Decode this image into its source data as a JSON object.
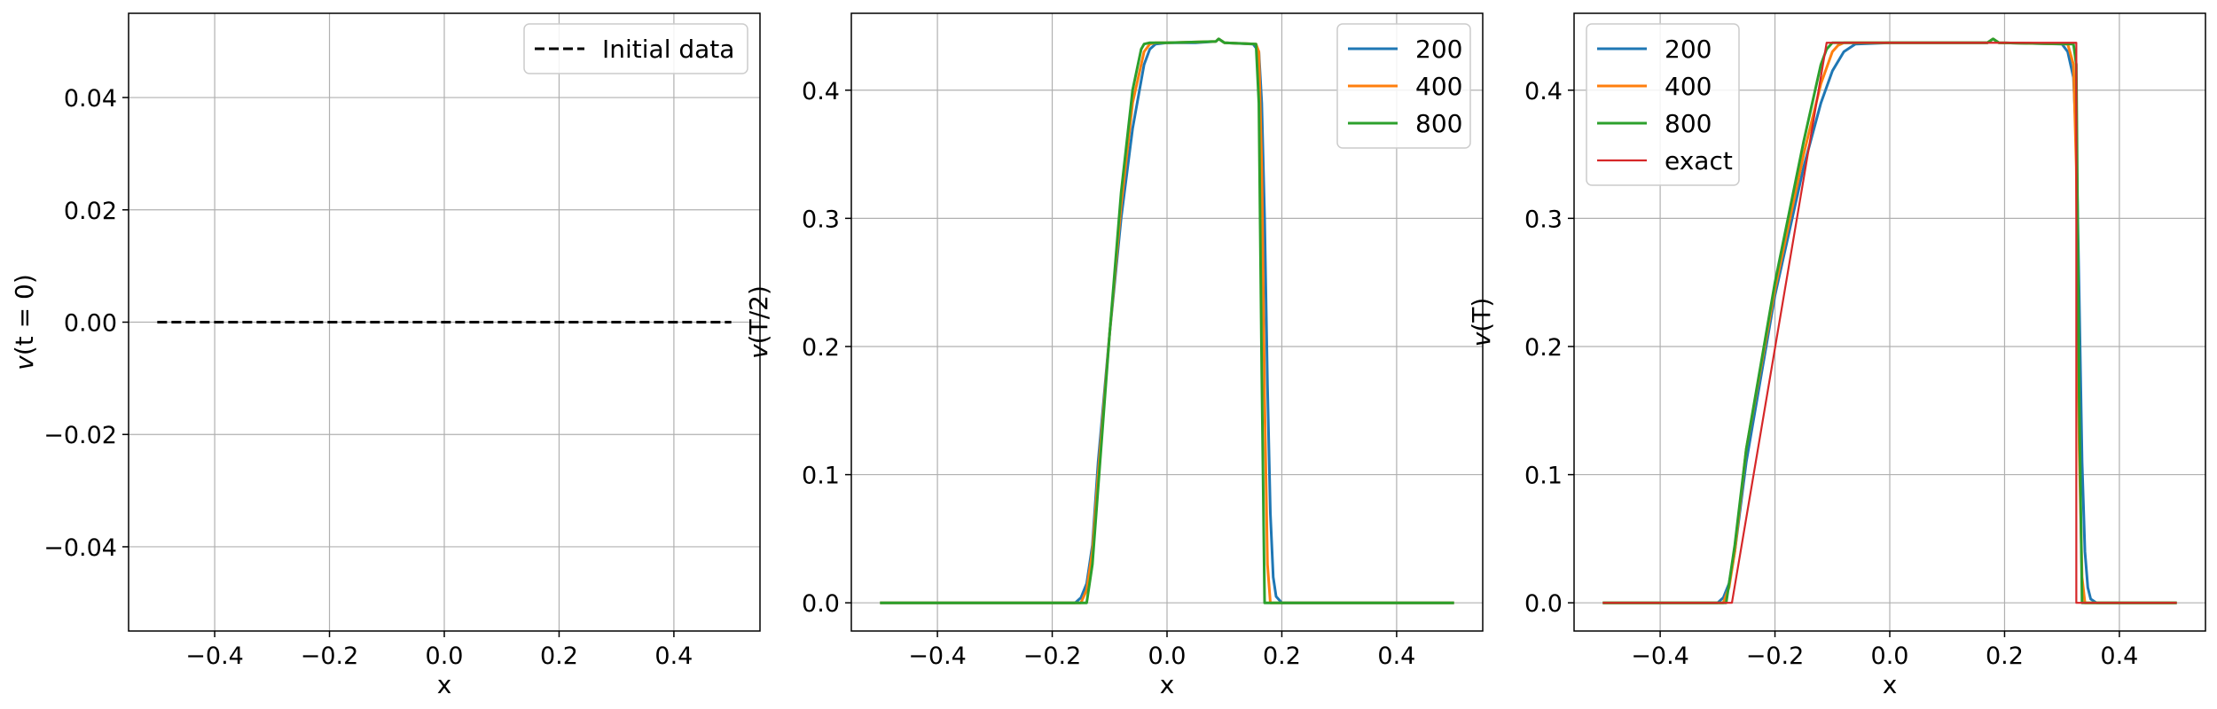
{
  "chart_data": [
    {
      "type": "line",
      "title": "",
      "xlabel": "x",
      "ylabel": "v(t = 0)",
      "xlim": [
        -0.55,
        0.55
      ],
      "ylim": [
        -0.055,
        0.055
      ],
      "xticks": [
        -0.4,
        -0.2,
        0.0,
        0.2,
        0.4
      ],
      "xtick_labels": [
        "−0.4",
        "−0.2",
        "0.0",
        "0.2",
        "0.4"
      ],
      "yticks": [
        -0.04,
        -0.02,
        0.0,
        0.02,
        0.04
      ],
      "ytick_labels": [
        "−0.04",
        "−0.02",
        "0.00",
        "0.02",
        "0.04"
      ],
      "grid": true,
      "legend_position": "upper right",
      "series": [
        {
          "name": "Initial data",
          "color": "#000000",
          "dash": "dashed",
          "x": [
            -0.5,
            0.5
          ],
          "y": [
            0.0,
            0.0
          ]
        }
      ]
    },
    {
      "type": "line",
      "title": "",
      "xlabel": "x",
      "ylabel": "v(T/2)",
      "xlim": [
        -0.55,
        0.55
      ],
      "ylim": [
        -0.022,
        0.46
      ],
      "xticks": [
        -0.4,
        -0.2,
        0.0,
        0.2,
        0.4
      ],
      "xtick_labels": [
        "−0.4",
        "−0.2",
        "0.0",
        "0.2",
        "0.4"
      ],
      "yticks": [
        0.0,
        0.1,
        0.2,
        0.3,
        0.4
      ],
      "ytick_labels": [
        "0.0",
        "0.1",
        "0.2",
        "0.3",
        "0.4"
      ],
      "grid": true,
      "legend_position": "upper right",
      "series": [
        {
          "name": "200",
          "color": "#1f77b4",
          "x": [
            -0.5,
            -0.16,
            -0.15,
            -0.14,
            -0.13,
            -0.12,
            -0.1,
            -0.08,
            -0.06,
            -0.04,
            -0.03,
            -0.02,
            0.0,
            0.05,
            0.085,
            0.09,
            0.1,
            0.15,
            0.16,
            0.165,
            0.17,
            0.175,
            0.18,
            0.185,
            0.19,
            0.2,
            0.5
          ],
          "y": [
            0.0,
            0.0,
            0.004,
            0.015,
            0.045,
            0.11,
            0.21,
            0.3,
            0.37,
            0.42,
            0.432,
            0.436,
            0.437,
            0.437,
            0.438,
            0.44,
            0.437,
            0.436,
            0.43,
            0.39,
            0.3,
            0.17,
            0.07,
            0.02,
            0.005,
            0.0,
            0.0
          ]
        },
        {
          "name": "400",
          "color": "#ff7f0e",
          "x": [
            -0.5,
            -0.15,
            -0.14,
            -0.13,
            -0.12,
            -0.1,
            -0.08,
            -0.06,
            -0.04,
            -0.03,
            -0.02,
            0.0,
            0.085,
            0.09,
            0.1,
            0.155,
            0.16,
            0.165,
            0.17,
            0.175,
            0.18,
            0.5
          ],
          "y": [
            0.0,
            0.0,
            0.01,
            0.04,
            0.1,
            0.21,
            0.31,
            0.39,
            0.43,
            0.436,
            0.437,
            0.437,
            0.438,
            0.44,
            0.437,
            0.436,
            0.43,
            0.34,
            0.16,
            0.03,
            0.0,
            0.0
          ]
        },
        {
          "name": "800",
          "color": "#2ca02c",
          "x": [
            -0.5,
            -0.14,
            -0.13,
            -0.12,
            -0.1,
            -0.08,
            -0.06,
            -0.045,
            -0.04,
            -0.03,
            0.0,
            0.085,
            0.09,
            0.1,
            0.155,
            0.16,
            0.165,
            0.17,
            0.5
          ],
          "y": [
            0.0,
            0.0,
            0.03,
            0.09,
            0.21,
            0.32,
            0.4,
            0.432,
            0.436,
            0.437,
            0.437,
            0.438,
            0.44,
            0.437,
            0.436,
            0.39,
            0.18,
            0.0,
            0.0
          ]
        }
      ]
    },
    {
      "type": "line",
      "title": "",
      "xlabel": "x",
      "ylabel": "v(T)",
      "xlim": [
        -0.55,
        0.55
      ],
      "ylim": [
        -0.022,
        0.46
      ],
      "xticks": [
        -0.4,
        -0.2,
        0.0,
        0.2,
        0.4
      ],
      "xtick_labels": [
        "−0.4",
        "−0.2",
        "0.0",
        "0.2",
        "0.4"
      ],
      "yticks": [
        0.0,
        0.1,
        0.2,
        0.3,
        0.4
      ],
      "ytick_labels": [
        "0.0",
        "0.1",
        "0.2",
        "0.3",
        "0.4"
      ],
      "grid": true,
      "legend_position": "upper left",
      "series": [
        {
          "name": "200",
          "color": "#1f77b4",
          "x": [
            -0.5,
            -0.3,
            -0.29,
            -0.28,
            -0.27,
            -0.25,
            -0.2,
            -0.15,
            -0.12,
            -0.1,
            -0.08,
            -0.06,
            0.0,
            0.17,
            0.18,
            0.19,
            0.3,
            0.31,
            0.32,
            0.325,
            0.33,
            0.335,
            0.34,
            0.345,
            0.35,
            0.36,
            0.5
          ],
          "y": [
            0.0,
            0.0,
            0.004,
            0.015,
            0.04,
            0.11,
            0.24,
            0.34,
            0.39,
            0.415,
            0.43,
            0.436,
            0.437,
            0.437,
            0.44,
            0.437,
            0.436,
            0.43,
            0.41,
            0.36,
            0.24,
            0.11,
            0.04,
            0.012,
            0.003,
            0.0,
            0.0
          ]
        },
        {
          "name": "400",
          "color": "#ff7f0e",
          "x": [
            -0.5,
            -0.29,
            -0.28,
            -0.27,
            -0.25,
            -0.2,
            -0.15,
            -0.12,
            -0.1,
            -0.09,
            -0.08,
            0.0,
            0.17,
            0.18,
            0.19,
            0.31,
            0.32,
            0.325,
            0.33,
            0.335,
            0.34,
            0.5
          ],
          "y": [
            0.0,
            0.0,
            0.012,
            0.04,
            0.12,
            0.245,
            0.35,
            0.405,
            0.43,
            0.435,
            0.437,
            0.437,
            0.437,
            0.44,
            0.437,
            0.436,
            0.42,
            0.34,
            0.12,
            0.02,
            0.0,
            0.0
          ]
        },
        {
          "name": "800",
          "color": "#2ca02c",
          "x": [
            -0.5,
            -0.285,
            -0.28,
            -0.27,
            -0.25,
            -0.2,
            -0.15,
            -0.12,
            -0.11,
            -0.1,
            0.0,
            0.17,
            0.18,
            0.19,
            0.32,
            0.325,
            0.33,
            0.335,
            0.5
          ],
          "y": [
            0.0,
            0.0,
            0.015,
            0.045,
            0.12,
            0.25,
            0.36,
            0.42,
            0.432,
            0.437,
            0.437,
            0.437,
            0.44,
            0.437,
            0.436,
            0.42,
            0.16,
            0.0,
            0.0
          ]
        },
        {
          "name": "exact",
          "color": "#d62728",
          "thin": true,
          "x": [
            -0.5,
            -0.275,
            -0.275,
            -0.11,
            0.325,
            0.325,
            0.5
          ],
          "y": [
            0.0,
            0.0,
            0.0,
            0.437,
            0.437,
            0.0,
            0.0
          ]
        }
      ]
    }
  ]
}
